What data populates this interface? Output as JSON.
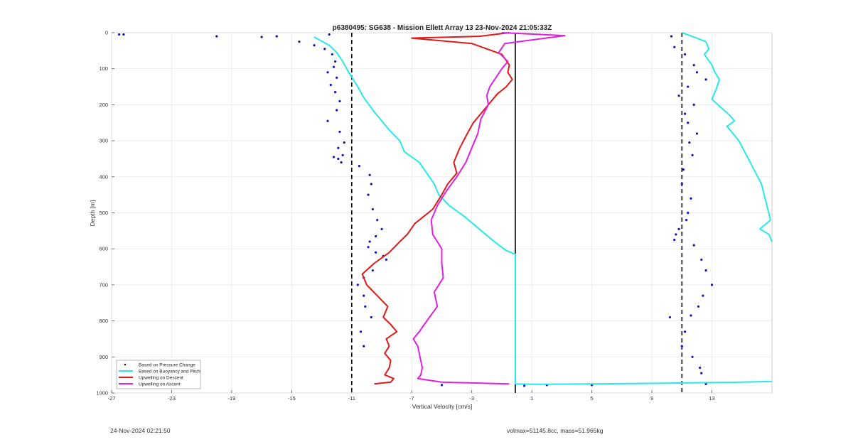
{
  "chart_data": {
    "type": "line",
    "title": "p6380495: SG638 - Mission Ellett Array 13 23-Nov-2024 21:05:33Z",
    "xlabel": "Vertical Velocity [cm/s]",
    "ylabel": "Depth [m]",
    "xlim": [
      -27,
      17
    ],
    "ylim": [
      0,
      1000
    ],
    "y_reversed": true,
    "x_ticks": [
      -27,
      -23,
      -19,
      -15,
      -11,
      -7,
      -3,
      1,
      5,
      9,
      13
    ],
    "y_ticks": [
      0,
      100,
      200,
      300,
      400,
      500,
      600,
      700,
      800,
      900,
      1000
    ],
    "grid": true,
    "legend_position": "bottom-left",
    "vertical_lines": [
      {
        "x": -11,
        "style": "dashed"
      },
      {
        "x": 11,
        "style": "dashed"
      },
      {
        "x": -0.1,
        "style": "solid"
      }
    ],
    "series": [
      {
        "name": "Based on Pressure Change",
        "color": "#1010c0",
        "style": "dots",
        "x": [
          -26.5,
          -26.2,
          -20,
          -17,
          -16,
          -14.5,
          -13.5,
          -12.8,
          -12.3,
          -12.1,
          -12.2,
          -12.6,
          -12.0,
          -12.4,
          -12.1,
          -11.8,
          -12.0,
          -12.6,
          -11.8,
          -11.5,
          -11.9,
          -11.6,
          -12.2,
          -11.9,
          -11.7,
          -10.5,
          -9.8,
          -9.7,
          -9.9,
          -9.6,
          -9.3,
          -9.0,
          -9.4,
          -9.8,
          -9.9,
          -9.4,
          -8.9,
          -8.7,
          -9.6,
          -10.2,
          -10.6,
          -10.2,
          -10.1,
          -9.7,
          -10.4,
          -10.2,
          10.3,
          10.5,
          11.2,
          11.8,
          12.0,
          12.6,
          11.4,
          10.8,
          11.8,
          11.2,
          11.4,
          12.0,
          11.5,
          11.7,
          11.1,
          11.0,
          11.6,
          11.4,
          11.3,
          10.8,
          10.6,
          10.5,
          11.8,
          12.3,
          12.6,
          13.0,
          12.4,
          12.1,
          11.6,
          10.2,
          11.2,
          11.0,
          11.7,
          12.2,
          12.3,
          12.6,
          5.0,
          2.0,
          0.5,
          -5,
          -12.5
        ],
        "y": [
          5,
          5,
          10,
          12,
          10,
          25,
          35,
          45,
          60,
          80,
          95,
          110,
          125,
          145,
          165,
          190,
          215,
          245,
          275,
          305,
          320,
          340,
          345,
          350,
          360,
          370,
          395,
          420,
          450,
          490,
          520,
          545,
          565,
          580,
          595,
          610,
          620,
          630,
          660,
          680,
          700,
          730,
          760,
          790,
          830,
          870,
          10,
          40,
          60,
          90,
          110,
          130,
          150,
          175,
          200,
          225,
          250,
          280,
          305,
          340,
          380,
          420,
          460,
          500,
          520,
          545,
          560,
          575,
          590,
          630,
          660,
          700,
          730,
          760,
          785,
          790,
          830,
          870,
          900,
          930,
          945,
          975,
          978,
          978,
          980,
          978,
          5
        ]
      },
      {
        "name": "Based on Buoyancy and Pitch",
        "color": "#28e8e8",
        "style": "line",
        "x": [
          -13.5,
          -12.5,
          -12.0,
          -11.6,
          -11.2,
          -10.6,
          -10.2,
          -9.5,
          -8.5,
          -7.8,
          -7.5,
          -7.0,
          -6.5,
          -6.0,
          -5.5,
          -5.2,
          -4.5,
          -3.5,
          -2.5,
          -1.5,
          -0.7,
          -0.1,
          -0.1,
          -0.1,
          1.0,
          5.0,
          10.0,
          15.0,
          17.0
        ],
        "y": [
          12,
          35,
          55,
          80,
          110,
          150,
          180,
          220,
          270,
          300,
          330,
          345,
          360,
          390,
          420,
          450,
          480,
          510,
          545,
          580,
          605,
          615,
          700,
          975,
          976,
          975,
          973,
          970,
          968
        ],
        "branch2": {
          "x": [
            11.0,
            12.0,
            12.6,
            12.8,
            12.5,
            13.0,
            13.2,
            13.5,
            13.3,
            13.0,
            14.2,
            14.5,
            14.0,
            14.8,
            15.3,
            15.8,
            16.3,
            16.6,
            16.9,
            16.2,
            16.8,
            17.0
          ],
          "y": [
            0,
            15,
            25,
            45,
            60,
            90,
            110,
            130,
            155,
            185,
            230,
            245,
            260,
            300,
            340,
            380,
            420,
            470,
            520,
            545,
            560,
            580
          ]
        }
      },
      {
        "name": "Upwelling on Descent",
        "color": "#e01818",
        "style": "line",
        "x": [
          -0.5,
          -2.5,
          -7.0,
          -3.0,
          -1.0,
          -0.5,
          -0.6,
          -0.3,
          -0.7,
          -1.3,
          -1.9,
          -2.5,
          -2.9,
          -3.3,
          -3.8,
          -4.2,
          -4.0,
          -4.6,
          -5.0,
          -5.6,
          -6.8,
          -7.3,
          -7.8,
          -8.5,
          -9.5,
          -10.3,
          -10.0,
          -9.3,
          -8.6,
          -8.9,
          -8.4,
          -8.0,
          -8.7,
          -8.5,
          -8.8,
          -8.4,
          -8.5,
          -8.8,
          -8.2,
          -8.4,
          -9.5
        ],
        "y": [
          0,
          10,
          15,
          30,
          60,
          90,
          110,
          130,
          150,
          170,
          200,
          230,
          250,
          280,
          320,
          360,
          390,
          420,
          450,
          490,
          530,
          560,
          580,
          610,
          640,
          670,
          700,
          730,
          760,
          790,
          810,
          830,
          850,
          870,
          890,
          910,
          930,
          950,
          960,
          970,
          975
        ]
      },
      {
        "name": "Upwelling on Ascent",
        "color": "#e020e0",
        "style": "line",
        "x": [
          -1.0,
          3.2,
          -0.8,
          -1.2,
          -0.6,
          -1.0,
          -1.4,
          -1.8,
          -2.0,
          -1.9,
          -2.4,
          -2.6,
          -3.0,
          -3.4,
          -4.0,
          -4.7,
          -5.3,
          -5.7,
          -5.6,
          -5.0,
          -5.0,
          -4.9,
          -5.5,
          -5.3,
          -6.0,
          -6.5,
          -6.9,
          -6.6,
          -6.5,
          -6.4,
          -6.3,
          -6.4,
          -6.6,
          -5.0,
          -0.5
        ],
        "y": [
          0,
          8,
          30,
          55,
          80,
          100,
          125,
          150,
          175,
          200,
          240,
          280,
          320,
          360,
          400,
          440,
          480,
          520,
          560,
          600,
          640,
          680,
          720,
          760,
          800,
          830,
          850,
          870,
          890,
          910,
          930,
          950,
          960,
          970,
          975
        ]
      }
    ]
  },
  "footer": {
    "timestamp": "24-Nov-2024 02:21:50",
    "volmax": "volmax=51145.8cc, mass=51.965kg"
  }
}
